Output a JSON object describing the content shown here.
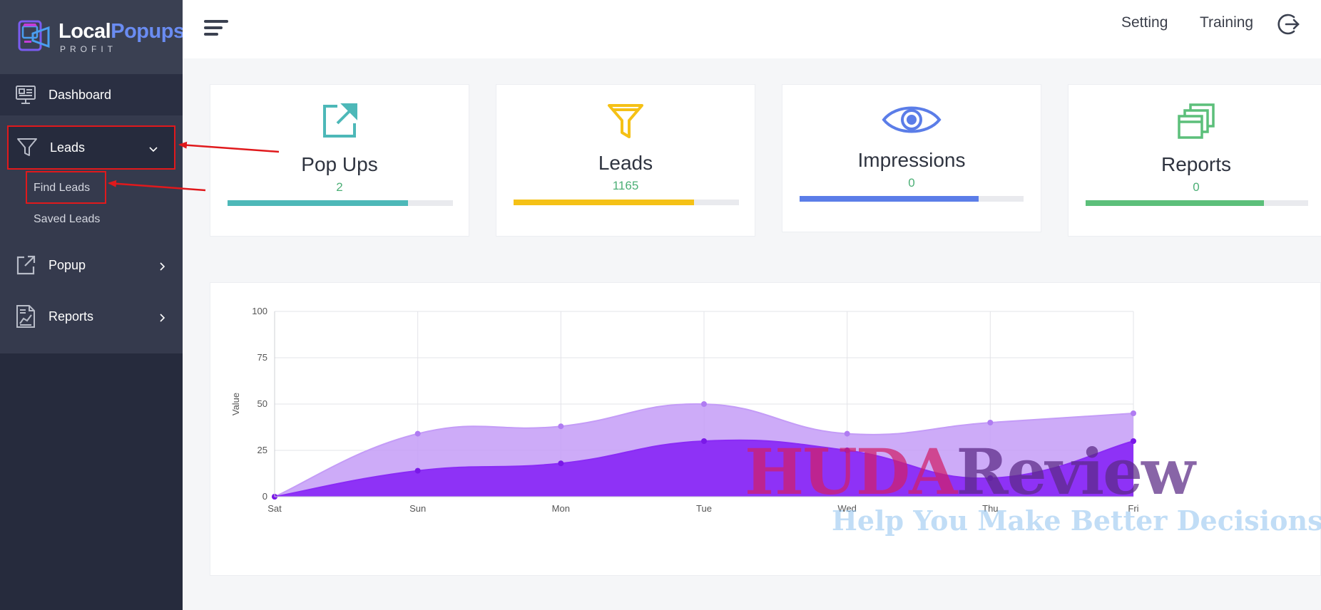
{
  "brand": {
    "name_part1": "Local",
    "name_part2": "Popups",
    "sub": "PROFIT"
  },
  "sidebar": {
    "items": [
      {
        "label": "Dashboard",
        "icon": "dashboard-monitor-icon"
      },
      {
        "label": "Leads",
        "icon": "filter-icon",
        "expanded": true,
        "children": [
          {
            "label": "Find Leads",
            "active": true
          },
          {
            "label": "Saved Leads"
          }
        ]
      },
      {
        "label": "Popup",
        "icon": "external-link-icon"
      },
      {
        "label": "Reports",
        "icon": "report-chart-icon"
      }
    ]
  },
  "header": {
    "menu_icon": "hamburger-menu-icon",
    "links": [
      {
        "label": "Setting"
      },
      {
        "label": "Training"
      }
    ],
    "logout_icon": "logout-icon"
  },
  "stats": [
    {
      "title": "Pop Ups",
      "value": "2",
      "icon": "external-link-icon",
      "color": "#4db8b8",
      "progress": 0.8
    },
    {
      "title": "Leads",
      "value": "1165",
      "icon": "filter-icon",
      "color": "#f5c116",
      "progress": 0.8
    },
    {
      "title": "Impressions",
      "value": "0",
      "icon": "eye-icon",
      "color": "#5b7de8",
      "progress": 0.8
    },
    {
      "title": "Reports",
      "value": "0",
      "icon": "copy-stack-icon",
      "color": "#5cbf7a",
      "progress": 0.8
    }
  ],
  "chart_data": {
    "type": "area",
    "categories": [
      "Sat",
      "Sun",
      "Mon",
      "Tue",
      "Wed",
      "Thu",
      "Fri"
    ],
    "series": [
      {
        "values": [
          0,
          34,
          38,
          50,
          34,
          40,
          45
        ],
        "color": "#c49cf7"
      },
      {
        "values": [
          0,
          14,
          18,
          30,
          25,
          10,
          30
        ],
        "color": "#8a2bf5"
      }
    ],
    "ylabel": "Value",
    "ylim": [
      0,
      100
    ],
    "yticks": [
      0,
      25,
      50,
      75,
      100
    ],
    "grid": true
  },
  "watermark": {
    "line1_a": "HUDA",
    "line1_b": "Review",
    "line2": "Help You Make Better Decisions"
  },
  "colors": {
    "sidebar_bg": "#262b3d",
    "highlight_red": "#e0191c",
    "accent_value": "#4caf76"
  }
}
